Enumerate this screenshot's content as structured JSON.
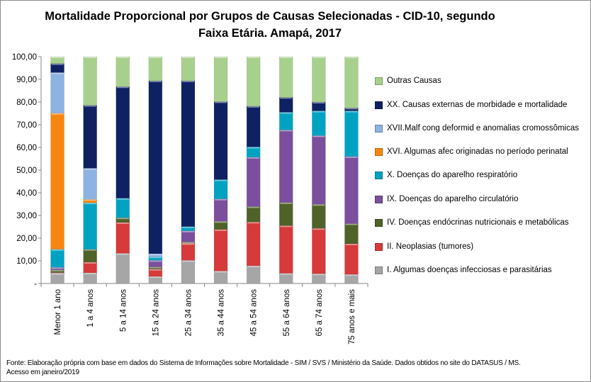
{
  "chart_data": {
    "type": "bar",
    "stacked": true,
    "title": "Mortalidade Proporcional por Grupos de Causas Selecionadas - CID-10, segundo Faixa Etária. Amapá, 2017",
    "title_lines": [
      "Mortalidade Proporcional por Grupos de Causas Selecionadas - CID-10, segundo",
      "Faixa Etária. Amapá, 2017"
    ],
    "xlabel": "",
    "ylabel": "",
    "ylim": [
      0,
      100
    ],
    "yticks": [
      "-",
      "10,00",
      "20,00",
      "30,00",
      "40,00",
      "50,00",
      "60,00",
      "70,00",
      "80,00",
      "90,00",
      "100,00"
    ],
    "grid": false,
    "legend_placement": "right",
    "categories": [
      "Menor 1 ano",
      "1 a 4 anos",
      "5 a 14 anos",
      "15 a 24 anos",
      "25 a 34 anos",
      "35 a 44 anos",
      "45 a 54 anos",
      "55 a 64 anos",
      "65 a 74 anos",
      "75 anos e mais"
    ],
    "series": [
      {
        "name": "I.   Algumas doenças infecciosas e parasitárias",
        "color": "#a6a6a6",
        "values": [
          4.5,
          4.7,
          13.3,
          3.1,
          10.2,
          5.5,
          7.8,
          4.5,
          4.3,
          4.0
        ]
      },
      {
        "name": "II.  Neoplasias (tumores)",
        "color": "#d63a3a",
        "values": [
          0.3,
          4.7,
          13.6,
          3.2,
          7.5,
          18.3,
          19.3,
          21.0,
          20.0,
          13.5
        ]
      },
      {
        "name": "IV.  Doenças endócrinas nutricionais e metabólicas",
        "color": "#4f6228",
        "values": [
          1.2,
          5.7,
          2.1,
          1.0,
          0.6,
          3.6,
          6.8,
          10.2,
          10.6,
          8.9
        ]
      },
      {
        "name": "IX.  Doenças do aparelho circulatório",
        "color": "#7b4f9d",
        "values": [
          1.1,
          0,
          0,
          2.9,
          4.9,
          9.9,
          21.8,
          32.0,
          30.3,
          29.6
        ]
      },
      {
        "name": "X.   Doenças do aparelho respiratório",
        "color": "#00a2c2",
        "values": [
          8.0,
          20.5,
          8.6,
          1.6,
          1.9,
          8.5,
          4.5,
          7.8,
          10.9,
          20.1
        ]
      },
      {
        "name": "XVI. Algumas afec originadas no período perinatal",
        "color": "#f7860f",
        "values": [
          60.0,
          1.5,
          0,
          0,
          0,
          0,
          0,
          0,
          0,
          0
        ]
      },
      {
        "name": "XVII.Malf cong deformid e anomalias cromossômicas",
        "color": "#8db3e2",
        "values": [
          17.9,
          13.7,
          0,
          1.3,
          0,
          0,
          0,
          0,
          0,
          0
        ]
      },
      {
        "name": "XX.  Causas externas de morbidade e mortalidade",
        "color": "#0e2163",
        "values": [
          4.0,
          27.8,
          49.2,
          76.3,
          64.3,
          34.4,
          18.0,
          6.6,
          3.9,
          1.3
        ]
      },
      {
        "name": "Outras Causas",
        "color": "#a8d08d",
        "values": [
          3.0,
          21.4,
          13.2,
          10.6,
          10.6,
          19.8,
          21.8,
          17.9,
          20.0,
          22.6
        ]
      }
    ]
  },
  "footer": {
    "line1": "Fonte: Elaboração própria com base em dados do  Sistema de Informações sobre Mortalidade - SIM / SVS / Ministério da Saúde. Dados obtidos no site do DATASUS / MS.",
    "line2": "Acesso em janeiro/2019"
  }
}
